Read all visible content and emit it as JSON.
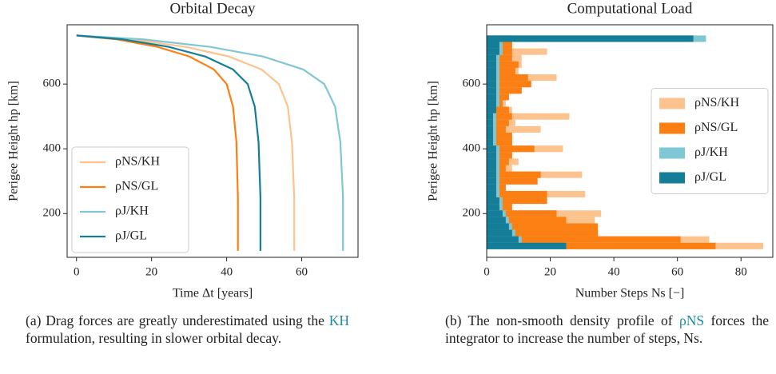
{
  "chart_data": [
    {
      "type": "line",
      "title": "Orbital Decay",
      "xlabel": "Time Δt [years]",
      "ylabel": "Perigee Height hp [km]",
      "xlim": [
        -2.5,
        75
      ],
      "xticks": [
        0,
        20,
        40,
        60
      ],
      "ylim": [
        65,
        783
      ],
      "yticks": [
        200,
        400,
        600
      ],
      "legend": "lower left",
      "series": [
        {
          "name": "ρNS/KH",
          "color": "#fdc38e",
          "x": [
            0,
            14.5,
            29,
            40.6,
            49.3,
            53.9,
            56.3,
            57.4,
            58,
            58
          ],
          "values": [
            750,
            738,
            715,
            685,
            645,
            600,
            530,
            420,
            250,
            85
          ]
        },
        {
          "name": "ρNS/GL",
          "color": "#fb7f12",
          "x": [
            0,
            10.8,
            21.5,
            30.1,
            36.6,
            40,
            41.7,
            42.6,
            43,
            43
          ],
          "values": [
            750,
            738,
            715,
            685,
            645,
            600,
            530,
            420,
            250,
            85
          ]
        },
        {
          "name": "ρJ/KH",
          "color": "#80c7d5",
          "x": [
            0,
            17.8,
            35.5,
            49.7,
            60.4,
            66,
            68.9,
            70.3,
            71,
            71
          ],
          "values": [
            750,
            738,
            715,
            685,
            645,
            600,
            530,
            420,
            250,
            85
          ]
        },
        {
          "name": "ρJ/GL",
          "color": "#147e99",
          "x": [
            0,
            12.3,
            24.5,
            34.3,
            41.7,
            45.6,
            47.5,
            48.5,
            49,
            49
          ],
          "values": [
            750,
            738,
            715,
            685,
            645,
            600,
            530,
            420,
            250,
            85
          ]
        }
      ]
    },
    {
      "type": "histogram",
      "title": "Computational Load",
      "xlabel": "Number Steps Ns [−]",
      "ylabel": "Perigee Height hp [km]",
      "xlim": [
        0,
        90
      ],
      "xticks": [
        0,
        20,
        40,
        60,
        80
      ],
      "ylim": [
        65,
        783
      ],
      "yticks": [
        200,
        400,
        600
      ],
      "legend": "center right",
      "bins": [
        90,
        110,
        130,
        150,
        170,
        190,
        210,
        230,
        250,
        270,
        290,
        310,
        330,
        350,
        370,
        390,
        410,
        430,
        450,
        470,
        490,
        510,
        530,
        550,
        570,
        590,
        610,
        630,
        650,
        670,
        690,
        710,
        730,
        750
      ],
      "series": [
        {
          "name": "ρNS/KH",
          "color": "#fdc38e",
          "values": [
            87,
            70,
            35,
            28,
            34,
            36,
            8,
            19,
            31,
            6,
            16,
            30,
            8,
            10,
            8,
            24,
            8,
            8,
            17,
            9,
            26,
            8,
            6,
            7,
            11,
            14,
            22,
            10,
            11,
            11,
            19,
            8,
            8
          ]
        },
        {
          "name": "ρNS/GL",
          "color": "#fb7f12",
          "values": [
            72,
            61,
            35,
            35,
            25,
            22,
            8,
            19,
            19,
            6,
            16,
            17,
            6,
            7,
            8,
            15,
            8,
            8,
            6,
            7,
            8,
            7,
            5,
            7,
            11,
            14,
            13,
            9,
            10,
            8,
            8,
            8,
            8
          ]
        },
        {
          "name": "ρJ/KH",
          "color": "#80c7d5",
          "values": [
            25,
            11,
            9,
            8,
            7,
            6,
            5,
            5,
            4,
            4,
            4,
            4,
            4,
            4,
            4,
            4,
            3,
            3,
            3,
            3,
            3,
            3,
            4,
            4,
            4,
            4,
            4,
            4,
            4,
            4,
            5,
            5,
            69
          ]
        },
        {
          "name": "ρJ/GL",
          "color": "#147e99",
          "values": [
            25,
            10,
            8,
            7,
            6,
            5,
            4,
            4,
            3,
            3,
            3,
            3,
            3,
            3,
            3,
            3,
            2,
            2,
            2,
            2,
            2,
            3,
            3,
            3,
            3,
            3,
            3,
            3,
            3,
            3,
            4,
            4,
            65
          ]
        }
      ]
    }
  ],
  "captions": [
    [
      "(a) Drag forces are greatly underestimated using the ",
      "KH",
      " formulation, resulting in slower orbital decay."
    ],
    [
      "(b) The non-smooth density profile of ",
      "ρNS",
      " forces the integrator to increase the number of steps, Ns."
    ]
  ]
}
